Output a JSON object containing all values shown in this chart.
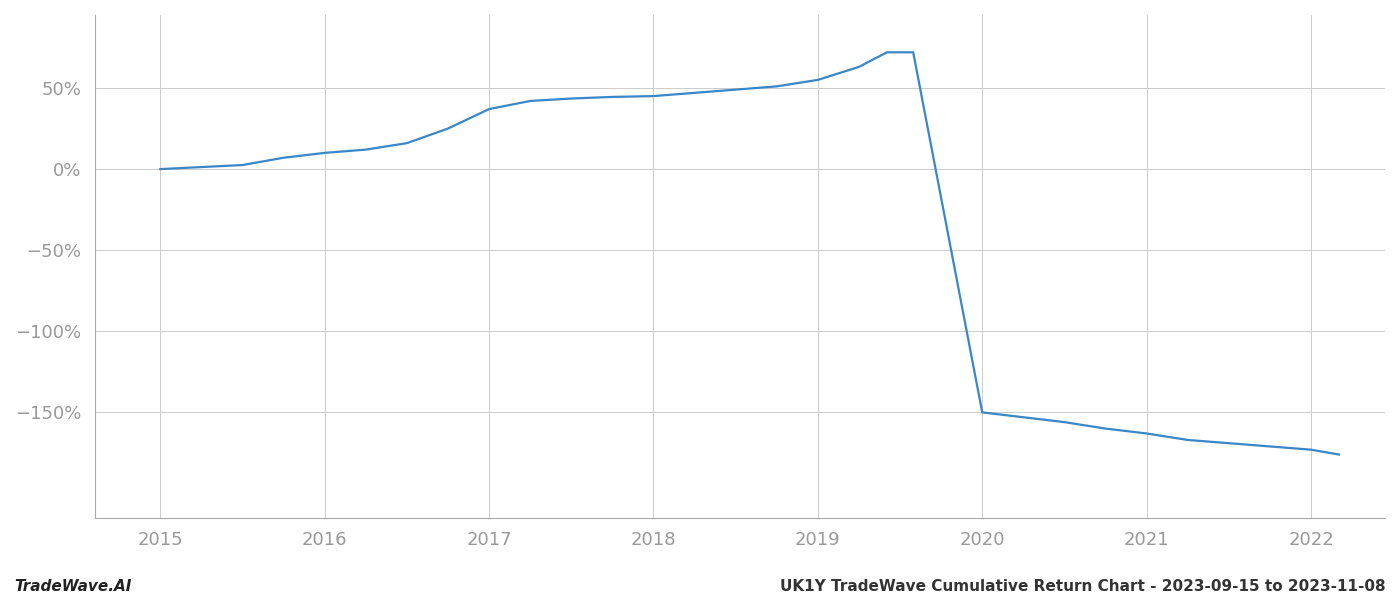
{
  "title": "UK1Y TradeWave Cumulative Return Chart - 2023-09-15 to 2023-11-08",
  "watermark": "TradeWave.AI",
  "line_color": "#3a87c8",
  "background_color": "#ffffff",
  "grid_color": "#cccccc",
  "x_values": [
    2015.0,
    2015.2,
    2015.5,
    2015.75,
    2016.0,
    2016.25,
    2016.5,
    2016.75,
    2017.0,
    2017.25,
    2017.5,
    2017.75,
    2018.0,
    2018.25,
    2018.5,
    2018.75,
    2019.0,
    2019.25,
    2019.42,
    2019.58,
    2020.0,
    2020.25,
    2020.5,
    2020.75,
    2021.0,
    2021.25,
    2021.5,
    2021.75,
    2022.0,
    2022.17
  ],
  "y_values": [
    0.0,
    1.0,
    2.5,
    7.0,
    10.0,
    12.0,
    16.0,
    25.0,
    37.0,
    42.0,
    43.5,
    44.5,
    45.0,
    47.0,
    49.0,
    51.0,
    55.0,
    63.0,
    72.0,
    72.0,
    -150.0,
    -153.0,
    -156.0,
    -160.0,
    -163.0,
    -167.0,
    -169.0,
    -171.0,
    -173.0,
    -176.0
  ],
  "xlim": [
    2014.6,
    2022.45
  ],
  "ylim": [
    -215,
    95
  ],
  "yticks": [
    50,
    0,
    -50,
    -100,
    -150
  ],
  "xticks": [
    2015,
    2016,
    2017,
    2018,
    2019,
    2020,
    2021,
    2022
  ],
  "line_width": 1.6,
  "tick_label_color": "#999999",
  "title_fontsize": 11,
  "watermark_fontsize": 11
}
